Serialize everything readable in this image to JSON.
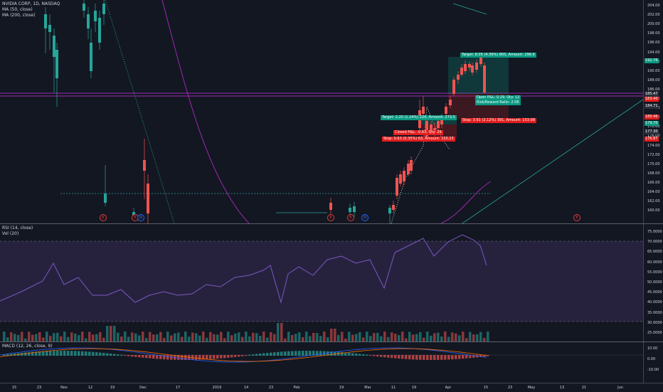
{
  "main": {
    "title": "NVIDIA CORP, 1D, NASDAQ",
    "indicators": [
      "MA (50, close)",
      "MA (200, close)"
    ]
  },
  "rsi": {
    "title": "RSI (14, close)",
    "vol_title": "Vol (20)"
  },
  "macd": {
    "title": "MACD (12, 26, close, 9)"
  },
  "price_scale": [
    "204.00",
    "202.00",
    "200.00",
    "198.00",
    "196.00",
    "194.00",
    "192.00",
    "190.00",
    "188.00",
    "186.00",
    "184.00",
    "182.00",
    "180.00",
    "178.00",
    "176.00",
    "174.00",
    "172.00",
    "170.00",
    "168.00",
    "166.00",
    "164.00",
    "162.00",
    "160.00"
  ],
  "price_labels": [
    {
      "text": "192.76",
      "color": "#089981"
    },
    {
      "text": "185.47",
      "color": "#2a2e39"
    },
    {
      "text": "183.40",
      "color": "#e21d1d"
    },
    {
      "text": "184.71",
      "color": "#2a2e39"
    },
    {
      "text": "180.46",
      "color": "#e21d1d"
    },
    {
      "text": "179.70",
      "color": "#089981"
    },
    {
      "text": "177.30",
      "color": "#2a2e39"
    },
    {
      "text": "176.87",
      "color": "#e21d1d"
    }
  ],
  "rsi_scale": [
    "75.0000",
    "70.0000",
    "65.0000",
    "60.0000",
    "55.0000",
    "50.0000",
    "45.0000",
    "40.0000",
    "35.0000",
    "30.0000",
    "25.0000"
  ],
  "macd_scale": [
    "10.00",
    "0.00",
    "-10.00"
  ],
  "x_labels": [
    "15",
    "23",
    "Nov",
    "12",
    "19",
    "Dec",
    "17",
    "2019",
    "14",
    "23",
    "Feb",
    "19",
    "Mar",
    "11",
    "19",
    "Apr",
    "15",
    "23",
    "May",
    "13",
    "21",
    "Jun"
  ],
  "trades": {
    "target_top": "Target: 8.05 (4.36%) 805, Amount: 296.6",
    "open_pnl": "Open P&L: 0.29, Qty: 12",
    "risk_reward": "Risk/Reward Ratio: 2.06",
    "target_mid": "Target: 2.20 (1.24%) 220, Amount: 273.5",
    "stop_right": "Stop: 3.91 (2.12%) 391, Amount: 153.08",
    "closed_pnl": "Closed P&L: -0.63, Qty: 29",
    "stop_left": "Stop: 0.63 (0.35%) 63, Amount: 150.23"
  },
  "events": [
    "E",
    "E",
    "D",
    "E",
    "E",
    "D",
    "E"
  ]
}
